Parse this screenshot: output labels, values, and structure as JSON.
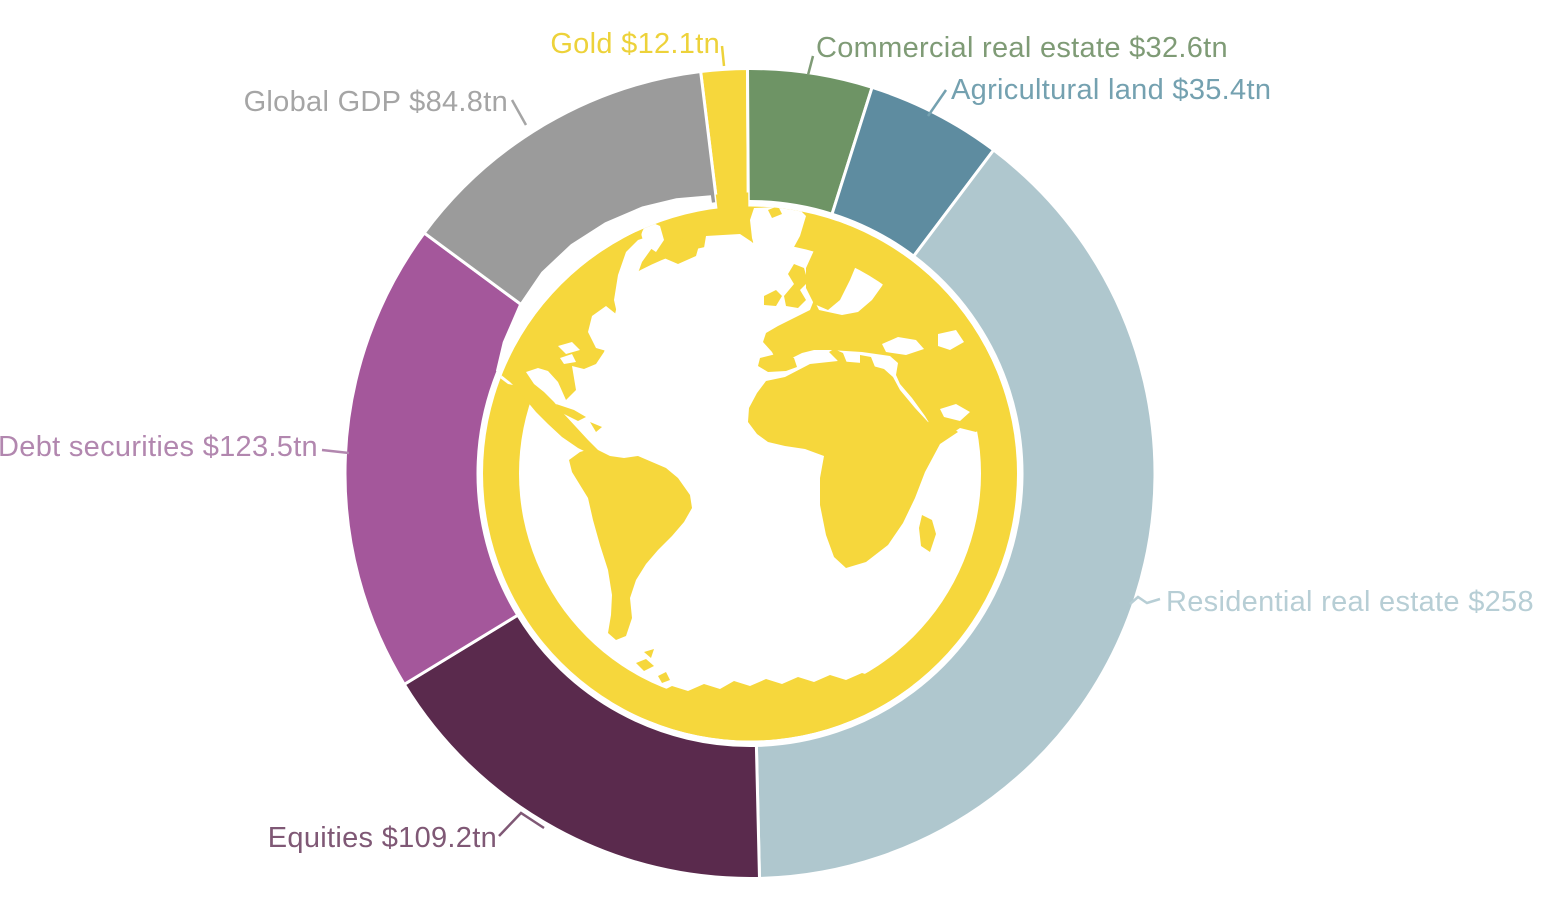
{
  "background_color": "#FFFFFF",
  "chart_data": {
    "type": "donut",
    "title": "",
    "unit": "$tn",
    "center_icon": "globe",
    "center_globe": {
      "land_color": "#F6D73C",
      "ocean_color": "#FFFFFF"
    },
    "start_angle_deg": -7.0,
    "legend_position": "around",
    "grid": false,
    "segments": [
      {
        "name": "Gold",
        "value": 12.1,
        "label": "Gold $12.1tn",
        "color": "#F6D73C",
        "label_color": "#EDD23A"
      },
      {
        "name": "Commercial real estate",
        "value": 32.6,
        "label": "Commercial real estate $32.6tn",
        "color": "#6E9465",
        "label_color": "#7F9B76"
      },
      {
        "name": "Agricultural land",
        "value": 35.4,
        "label": "Agricultural land $35.4tn",
        "color": "#5E8CA0",
        "label_color": "#74A1B0"
      },
      {
        "name": "Residential real estate",
        "value": 258,
        "label": "Residential real estate $258",
        "color": "#AFC7CE",
        "label_color": "#B7CED5"
      },
      {
        "name": "Equities",
        "value": 109.2,
        "label": "Equities $109.2tn",
        "color": "#5A2A4D",
        "label_color": "#7F5875"
      },
      {
        "name": "Debt securities",
        "value": 123.5,
        "label": "Debt securities $123.5tn",
        "color": "#A4579B",
        "label_color": "#B287AF"
      },
      {
        "name": "Global GDP",
        "value": 84.8,
        "label": "Global GDP $84.8tn",
        "color": "#9B9B9B",
        "label_color": "#A5A5A5"
      }
    ]
  }
}
